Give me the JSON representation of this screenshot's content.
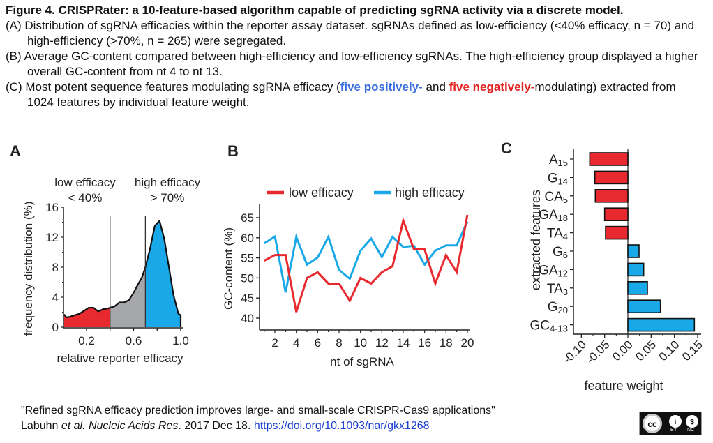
{
  "caption": {
    "title": "Figure 4. CRISPRater: a 10-feature-based algorithm capable of predicting sgRNA activity via a discrete model.",
    "item_a": "(A) Distribution of sgRNA efficacies within the reporter assay dataset. sgRNAs defined as low-efficiency (<40% efficacy, n = 70) and high-efficiency (>70%, n = 265) were segregated.",
    "item_b": "(B) Average GC-content compared between high-efficiency and low-efficiency sgRNAs. The high-efficiency group displayed a higher overall GC-content from nt 4 to nt 13.",
    "item_c_pre": "(C) Most potent sequence features modulating sgRNA efficacy (",
    "item_c_blue": "five positively-",
    "item_c_mid": " and ",
    "item_c_red": "five negatively-",
    "item_c_post": "modulating) extracted from 1024 features by individual feature weight."
  },
  "colors": {
    "red": "#e8292f",
    "blue": "#1aa9e8",
    "gray": "#a6a7ab",
    "text_blue": "#3b6fe0",
    "text_red": "#e32222"
  },
  "chart_data": [
    {
      "panel": "A",
      "type": "area",
      "title": "",
      "xlabel": "relative reporter efficacy",
      "ylabel": "frequency distribution (%)",
      "xlim": [
        0,
        1.0
      ],
      "ylim": [
        0,
        16
      ],
      "xticks": [
        "0.2",
        "0.6",
        "1.0"
      ],
      "xtick_values": [
        0.2,
        0.6,
        1.0
      ],
      "yticks": [
        "0",
        "4",
        "8",
        "12",
        "16"
      ],
      "ytick_values": [
        0,
        4,
        8,
        12,
        16
      ],
      "thresholds": [
        0.4,
        0.7
      ],
      "annotations": [
        {
          "line1": "low efficacy",
          "line2": "< 40%"
        },
        {
          "line1": "high efficacy",
          "line2": "> 70%"
        }
      ],
      "x": [
        0.0,
        0.03,
        0.06,
        0.1,
        0.14,
        0.18,
        0.22,
        0.26,
        0.3,
        0.34,
        0.38,
        0.4,
        0.44,
        0.48,
        0.52,
        0.56,
        0.6,
        0.64,
        0.67,
        0.7,
        0.74,
        0.78,
        0.82,
        0.86,
        0.9,
        0.94,
        0.98,
        1.0
      ],
      "y": [
        1.7,
        1.3,
        1.4,
        1.6,
        1.8,
        2.2,
        2.6,
        2.6,
        2.1,
        2.4,
        2.5,
        2.6,
        2.8,
        3.3,
        3.3,
        3.6,
        4.6,
        5.8,
        6.6,
        8.0,
        10.5,
        13.5,
        14.2,
        11.8,
        8.0,
        4.2,
        1.8,
        1.6
      ],
      "segments": [
        {
          "name": "low efficacy",
          "range": [
            0.0,
            0.4
          ],
          "color": "#e8292f"
        },
        {
          "name": "intermediate",
          "range": [
            0.4,
            0.7
          ],
          "color": "#a6a7ab"
        },
        {
          "name": "high efficacy",
          "range": [
            0.7,
            1.0
          ],
          "color": "#1aa9e8"
        }
      ]
    },
    {
      "panel": "B",
      "type": "line",
      "title": "",
      "xlabel": "nt of sgRNA",
      "ylabel": "GC-content (%)",
      "xlim": [
        1,
        20
      ],
      "ylim": [
        38,
        68
      ],
      "xticks": [
        "2",
        "4",
        "6",
        "8",
        "10",
        "12",
        "14",
        "16",
        "18",
        "20"
      ],
      "xtick_values": [
        2,
        4,
        6,
        8,
        10,
        12,
        14,
        16,
        18,
        20
      ],
      "yticks": [
        "40",
        "45",
        "50",
        "55",
        "60",
        "65"
      ],
      "ytick_values": [
        40,
        45,
        50,
        55,
        60,
        65
      ],
      "legend_position": "top",
      "x": [
        1,
        2,
        3,
        4,
        5,
        6,
        7,
        8,
        9,
        10,
        11,
        12,
        13,
        14,
        15,
        16,
        17,
        18,
        19,
        20
      ],
      "series": [
        {
          "name": "low efficacy",
          "color": "#e8292f",
          "values": [
            54.3,
            55.7,
            55.7,
            41.5,
            50.0,
            51.4,
            48.6,
            48.6,
            44.3,
            50.0,
            48.6,
            51.4,
            52.9,
            64.3,
            57.1,
            57.1,
            48.6,
            55.7,
            51.4,
            65.7
          ]
        },
        {
          "name": "high efficacy",
          "color": "#1aa9e8",
          "values": [
            58.6,
            60.3,
            46.4,
            60.2,
            53.3,
            55.1,
            60.2,
            52.0,
            49.8,
            56.8,
            59.8,
            55.2,
            60.2,
            57.7,
            58.0,
            53.3,
            56.8,
            58.1,
            58.1,
            64.0
          ]
        }
      ]
    },
    {
      "panel": "C",
      "type": "bar",
      "orientation": "horizontal",
      "title": "",
      "xlabel": "feature weight",
      "ylabel": "extracted features",
      "xlim": [
        -0.11,
        0.15
      ],
      "xticks": [
        "-0.10",
        "-0.05",
        "0.00",
        "0.05",
        "0.10",
        "0.15"
      ],
      "xtick_values": [
        -0.1,
        -0.05,
        0.0,
        0.05,
        0.1,
        0.15
      ],
      "categories": [
        {
          "base": "A",
          "sub": "15"
        },
        {
          "base": "G",
          "sub": "14"
        },
        {
          "base": "CA",
          "sub": "5"
        },
        {
          "base": "GA",
          "sub": "18"
        },
        {
          "base": "TA",
          "sub": "4"
        },
        {
          "base": "G",
          "sub": "6"
        },
        {
          "base": "GA",
          "sub": "12"
        },
        {
          "base": "TA",
          "sub": "3"
        },
        {
          "base": "G",
          "sub": "20"
        },
        {
          "base": "GC",
          "sub": "4-13"
        }
      ],
      "values": [
        -0.082,
        -0.071,
        -0.07,
        -0.05,
        -0.048,
        0.024,
        0.034,
        0.042,
        0.07,
        0.143
      ]
    }
  ],
  "panel_labels": {
    "a": "A",
    "b": "B",
    "c": "C"
  },
  "citation": {
    "title": "\"Refined sgRNA efficacy prediction improves large- and small-scale CRISPR-Cas9 applications\"",
    "authors": "Labuhn ",
    "etal": "et al. Nucleic Acids Res",
    "date": ". 2017 Dec 18. ",
    "doi_link": "https://doi.org/10.1093/nar/gkx1268"
  },
  "license": {
    "cc": "cc",
    "by_symbol": "i",
    "nc_symbol": "$",
    "by_label": "BY",
    "nc_label": "NC"
  }
}
